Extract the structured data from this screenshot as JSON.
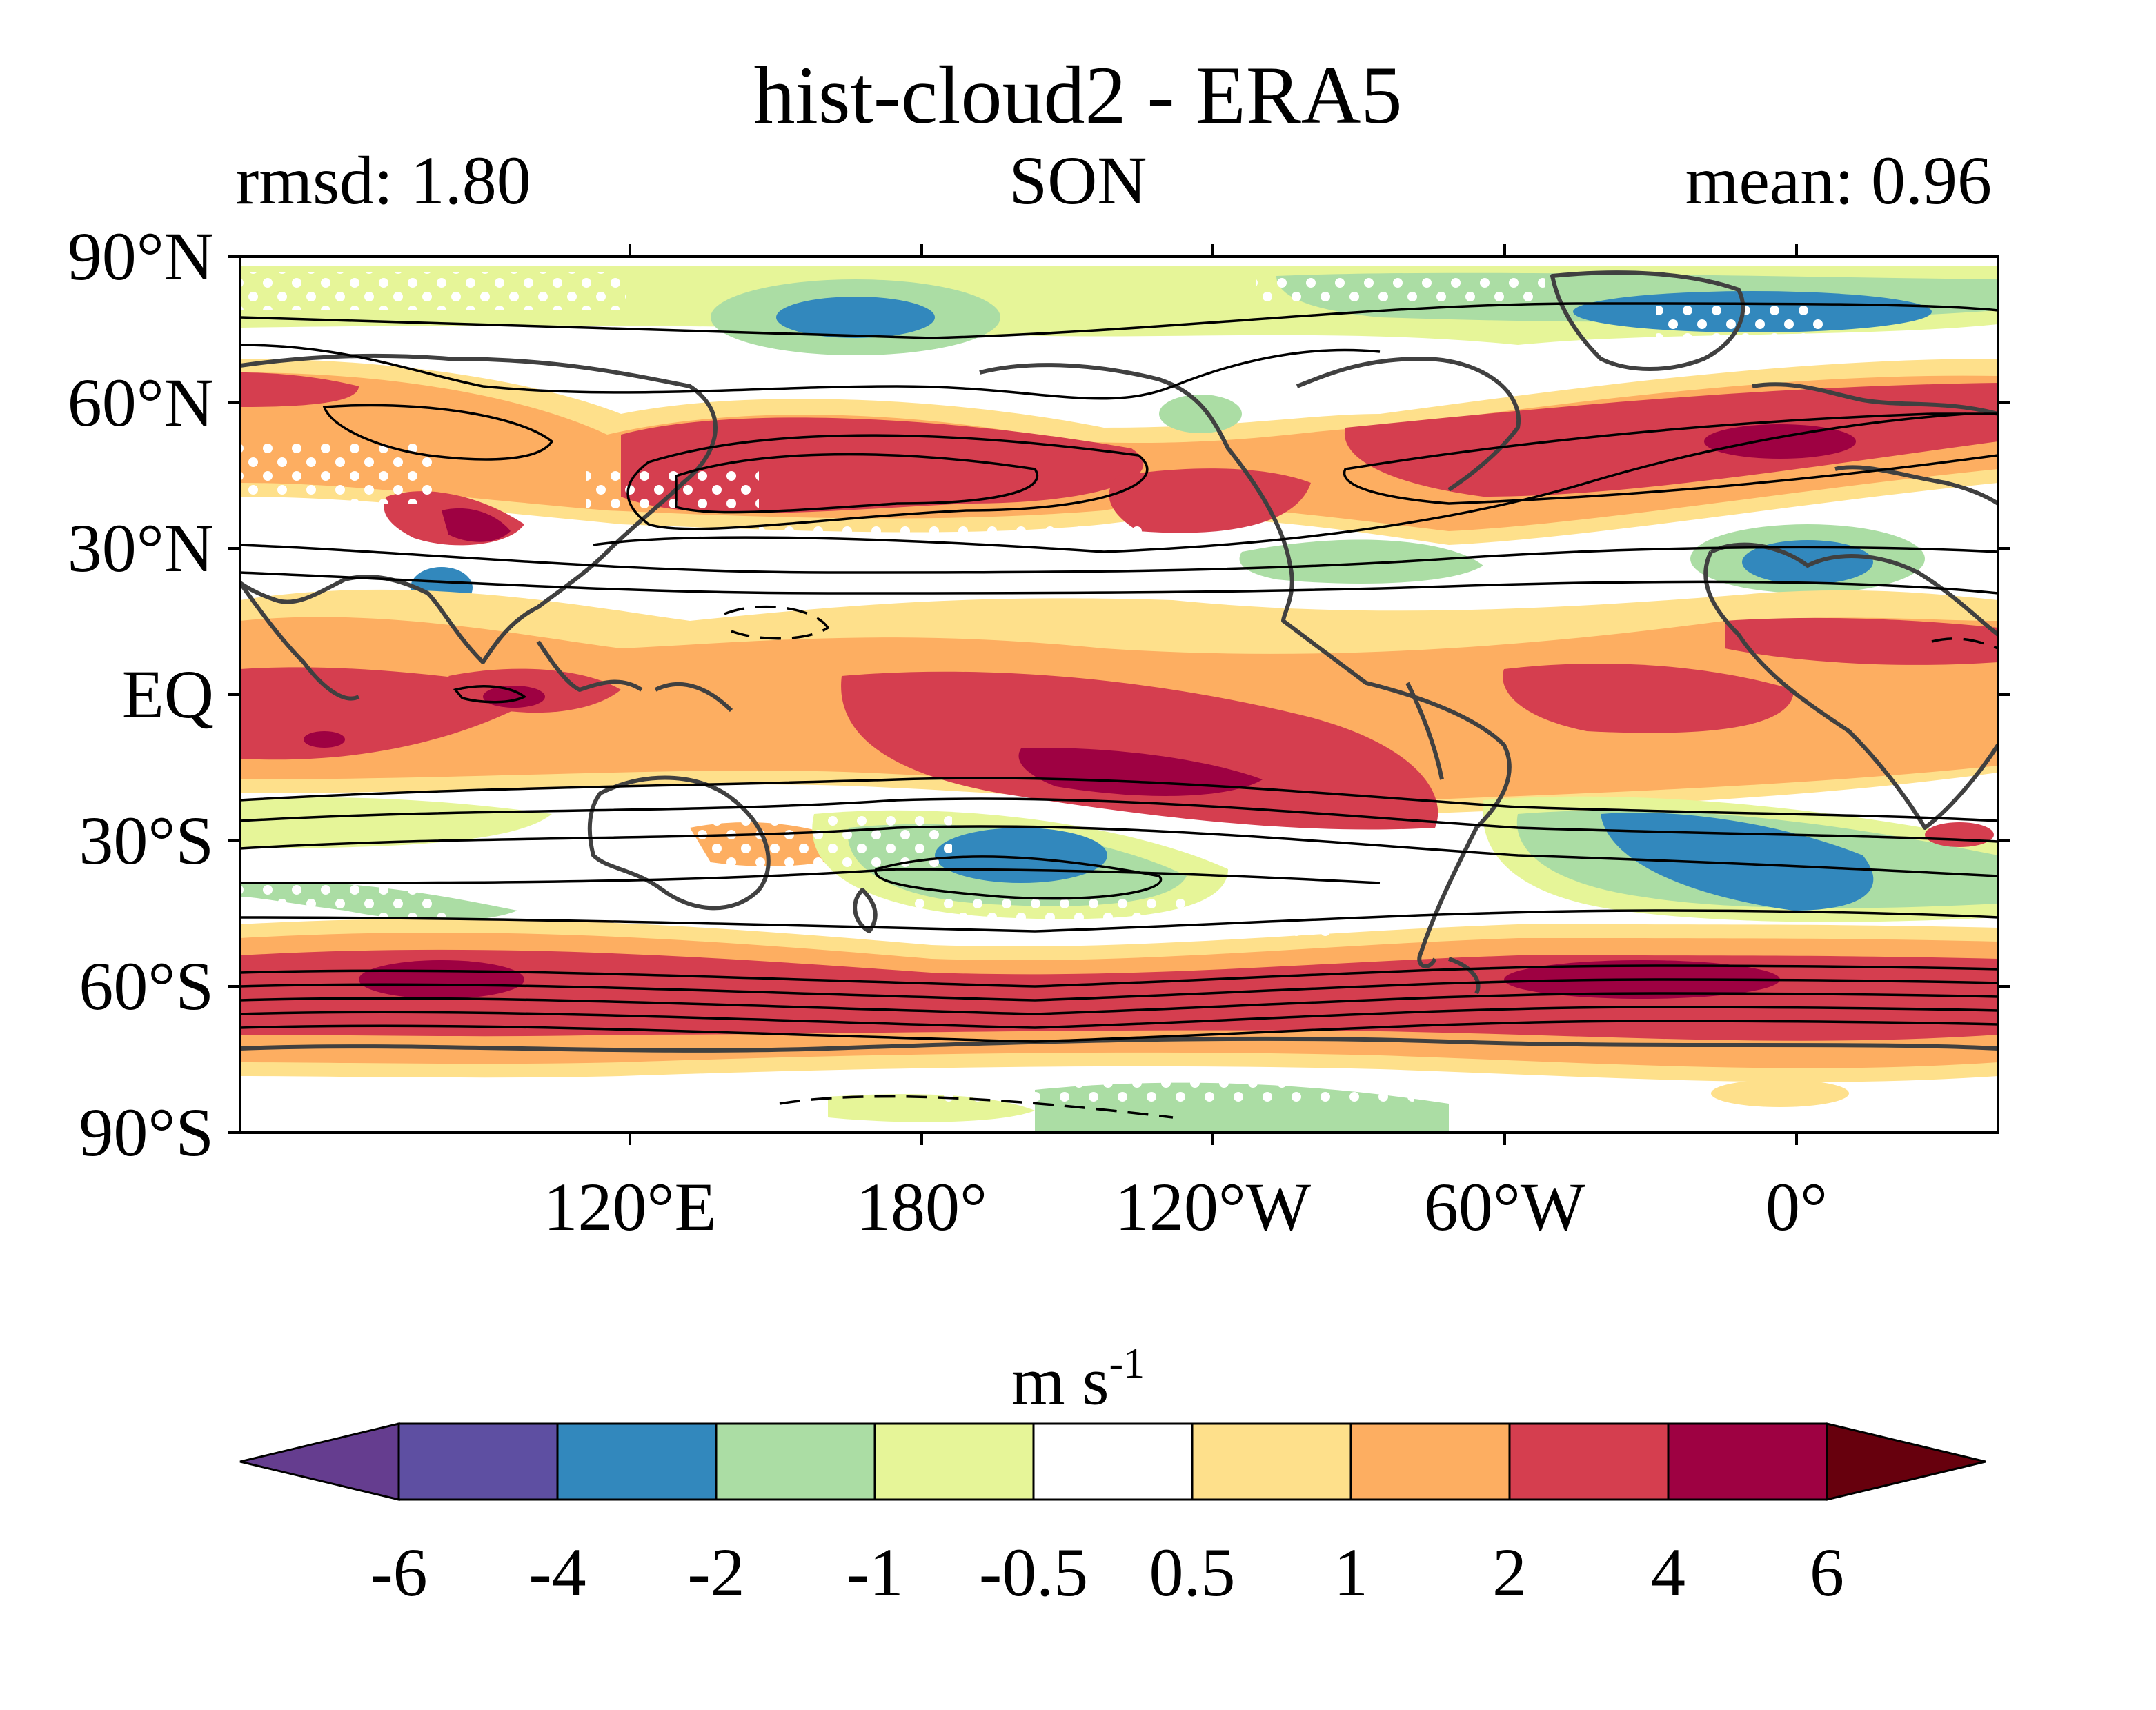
{
  "title": "hist-cloud2 - ERA5",
  "left_stat": "rmsd: 1.80",
  "season": "SON",
  "right_stat": "mean: 0.96",
  "map": {
    "lat_labels": [
      "90°N",
      "60°N",
      "30°N",
      "EQ",
      "30°S",
      "60°S",
      "90°S"
    ],
    "lon_labels": [
      "120°E",
      "180°",
      "120°W",
      "60°W",
      "0°"
    ]
  },
  "colorbar": {
    "units_base": "m s",
    "units_exp": "-1",
    "ticks": [
      "-6",
      "-4",
      "-2",
      "-1",
      "-0.5",
      "0.5",
      "1",
      "2",
      "4",
      "6"
    ],
    "colors": [
      "#5e4fa2",
      "#3288bd",
      "#abdda4",
      "#e6f598",
      "#ffffff",
      "#fee08b",
      "#fdae61",
      "#d53e4f",
      "#9e0142"
    ],
    "extend_low_color": "#653d8f",
    "extend_high_color": "#67000d"
  }
}
